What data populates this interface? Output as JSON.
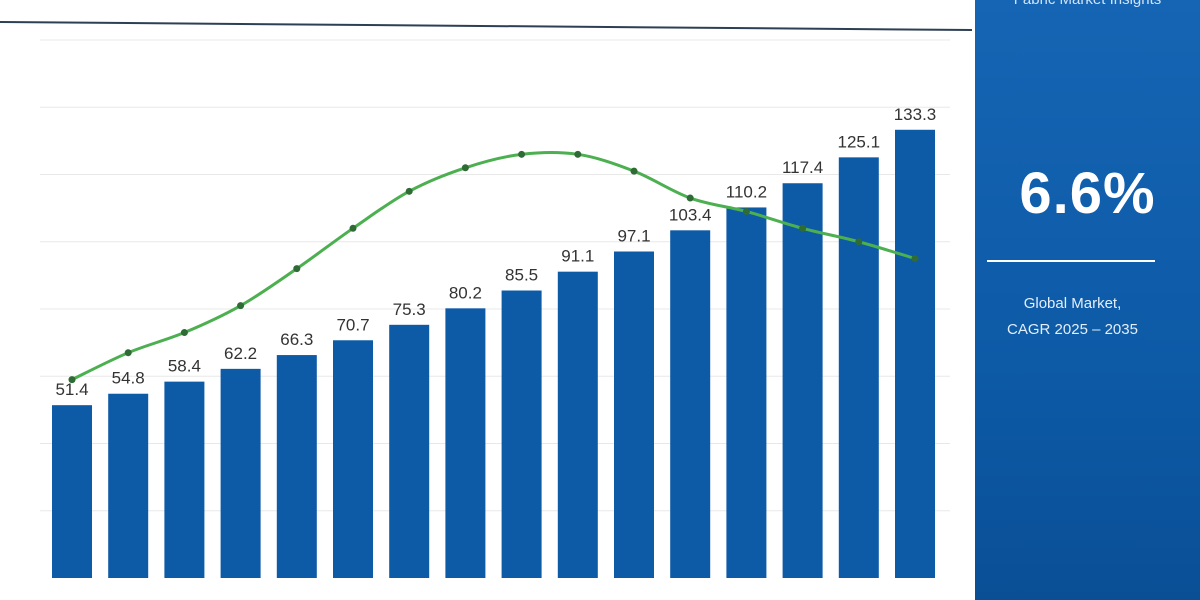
{
  "chart_data": {
    "type": "bar",
    "categories": [
      "",
      "",
      "",
      "",
      "",
      "",
      "",
      "",
      "",
      "",
      "",
      "",
      "",
      "",
      "",
      ""
    ],
    "values": [
      51.4,
      54.8,
      58.4,
      62.2,
      66.3,
      70.7,
      75.3,
      80.2,
      85.5,
      91.1,
      97.1,
      103.4,
      110.2,
      117.4,
      125.1,
      133.3
    ],
    "value_labels": [
      "51.4",
      "54.8",
      "58.4",
      "62.2",
      "66.3",
      "70.7",
      "75.3",
      "80.2",
      "85.5",
      "91.1",
      "97.1",
      "103.4",
      "110.2",
      "117.4",
      "125.1",
      "133.3"
    ],
    "trend_line": {
      "type": "line",
      "marker": "dot",
      "values": [
        59,
        67,
        73,
        81,
        92,
        104,
        115,
        122,
        126,
        126,
        121,
        113,
        109,
        104,
        100,
        95
      ]
    },
    "ylim": [
      0,
      160
    ],
    "grid": true,
    "colors": {
      "bar": "#0d5aa7",
      "line": "#4caf50",
      "line_marker": "#2e6b35",
      "grid": "#e8e8e8",
      "axis": "#2d3f55"
    }
  },
  "side_panel": {
    "top_text": "Fabric Market Insights",
    "big_value": "6.6%",
    "subtitle_line1": "Global Market,",
    "subtitle_line2": "CAGR 2025 – 2035"
  }
}
